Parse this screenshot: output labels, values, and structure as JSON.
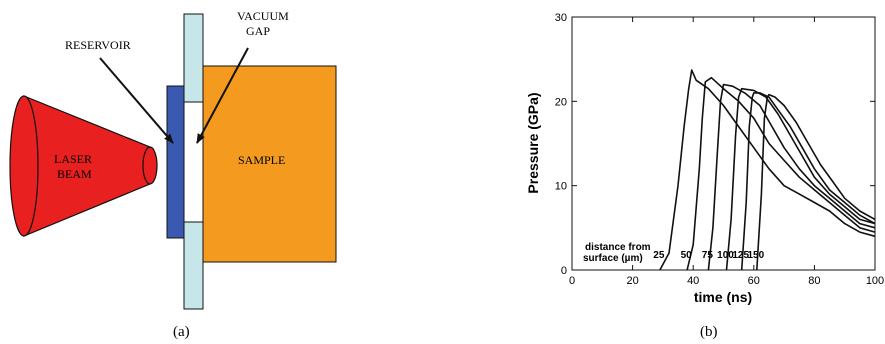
{
  "diagram": {
    "labels": {
      "reservoir": "RESERVOIR",
      "vacuum_line1": "VACUUM",
      "vacuum_line2": "GAP",
      "laser_line1": "LASER",
      "laser_line2": "BEAM",
      "sample": "SAMPLE"
    },
    "caption": "(a)",
    "colors": {
      "laser": "#e8201f",
      "reservoir": "#3a5ab2",
      "window": "#c7e6ea",
      "sample": "#f39a1f"
    }
  },
  "chart_data": {
    "type": "line",
    "caption": "(b)",
    "xlabel": "time (ns)",
    "ylabel": "Pressure (GPa)",
    "xlim": [
      0,
      100
    ],
    "ylim": [
      0,
      30
    ],
    "xticks": [
      0,
      20,
      40,
      60,
      80,
      100
    ],
    "yticks": [
      0,
      10,
      20,
      30
    ],
    "annotation_line1": "distance from",
    "annotation_line2": "surface (µm)",
    "series": [
      {
        "name": "25",
        "x": [
          29,
          32,
          35,
          37,
          38.5,
          39.5,
          41,
          45,
          50,
          55,
          60,
          65,
          70,
          75,
          80,
          85,
          90,
          95,
          100
        ],
        "y": [
          0,
          2,
          10,
          17,
          21.5,
          23.7,
          22.5,
          21.5,
          19.5,
          17,
          14.5,
          12,
          10,
          9,
          8,
          7,
          5.5,
          4.5,
          4
        ]
      },
      {
        "name": "50",
        "x": [
          38,
          40,
          42,
          43,
          44,
          46,
          50,
          55,
          60,
          65,
          70,
          75,
          80,
          85,
          90,
          95,
          100
        ],
        "y": [
          0,
          3,
          12,
          18,
          22.3,
          22.8,
          21.5,
          20,
          18,
          15,
          13,
          11,
          9.5,
          8,
          6.5,
          5,
          4.5
        ]
      },
      {
        "name": "75",
        "x": [
          45,
          46.5,
          48,
          49,
          50,
          53,
          57,
          62,
          66,
          70,
          75,
          80,
          85,
          90,
          95,
          100
        ],
        "y": [
          0,
          5,
          14,
          20,
          22,
          21.8,
          21,
          19.5,
          17,
          14.5,
          12,
          10,
          8.5,
          7,
          5.5,
          5
        ]
      },
      {
        "name": "100",
        "x": [
          51,
          52.5,
          54,
          55,
          56,
          60,
          64,
          68,
          72,
          76,
          80,
          85,
          90,
          95,
          100
        ],
        "y": [
          0,
          6,
          16,
          20.5,
          21.5,
          21.3,
          20.5,
          18.5,
          16,
          13.5,
          11,
          9,
          7.5,
          6,
          5.5
        ]
      },
      {
        "name": "125",
        "x": [
          56,
          57.5,
          58.5,
          59.5,
          60,
          62,
          65,
          68,
          72,
          76,
          80,
          85,
          90,
          95,
          100
        ],
        "y": [
          0,
          8,
          17,
          20.5,
          21,
          21,
          20.5,
          19,
          17,
          14.5,
          12,
          9.5,
          8,
          6.5,
          5.5
        ]
      },
      {
        "name": "150",
        "x": [
          61,
          62.5,
          63.5,
          64.5,
          65,
          67,
          70,
          74,
          78,
          82,
          86,
          90,
          95,
          100
        ],
        "y": [
          0,
          9,
          18,
          20.5,
          20.8,
          20.5,
          19.5,
          17.5,
          15,
          12.5,
          10.5,
          8.5,
          7,
          6
        ]
      }
    ]
  }
}
